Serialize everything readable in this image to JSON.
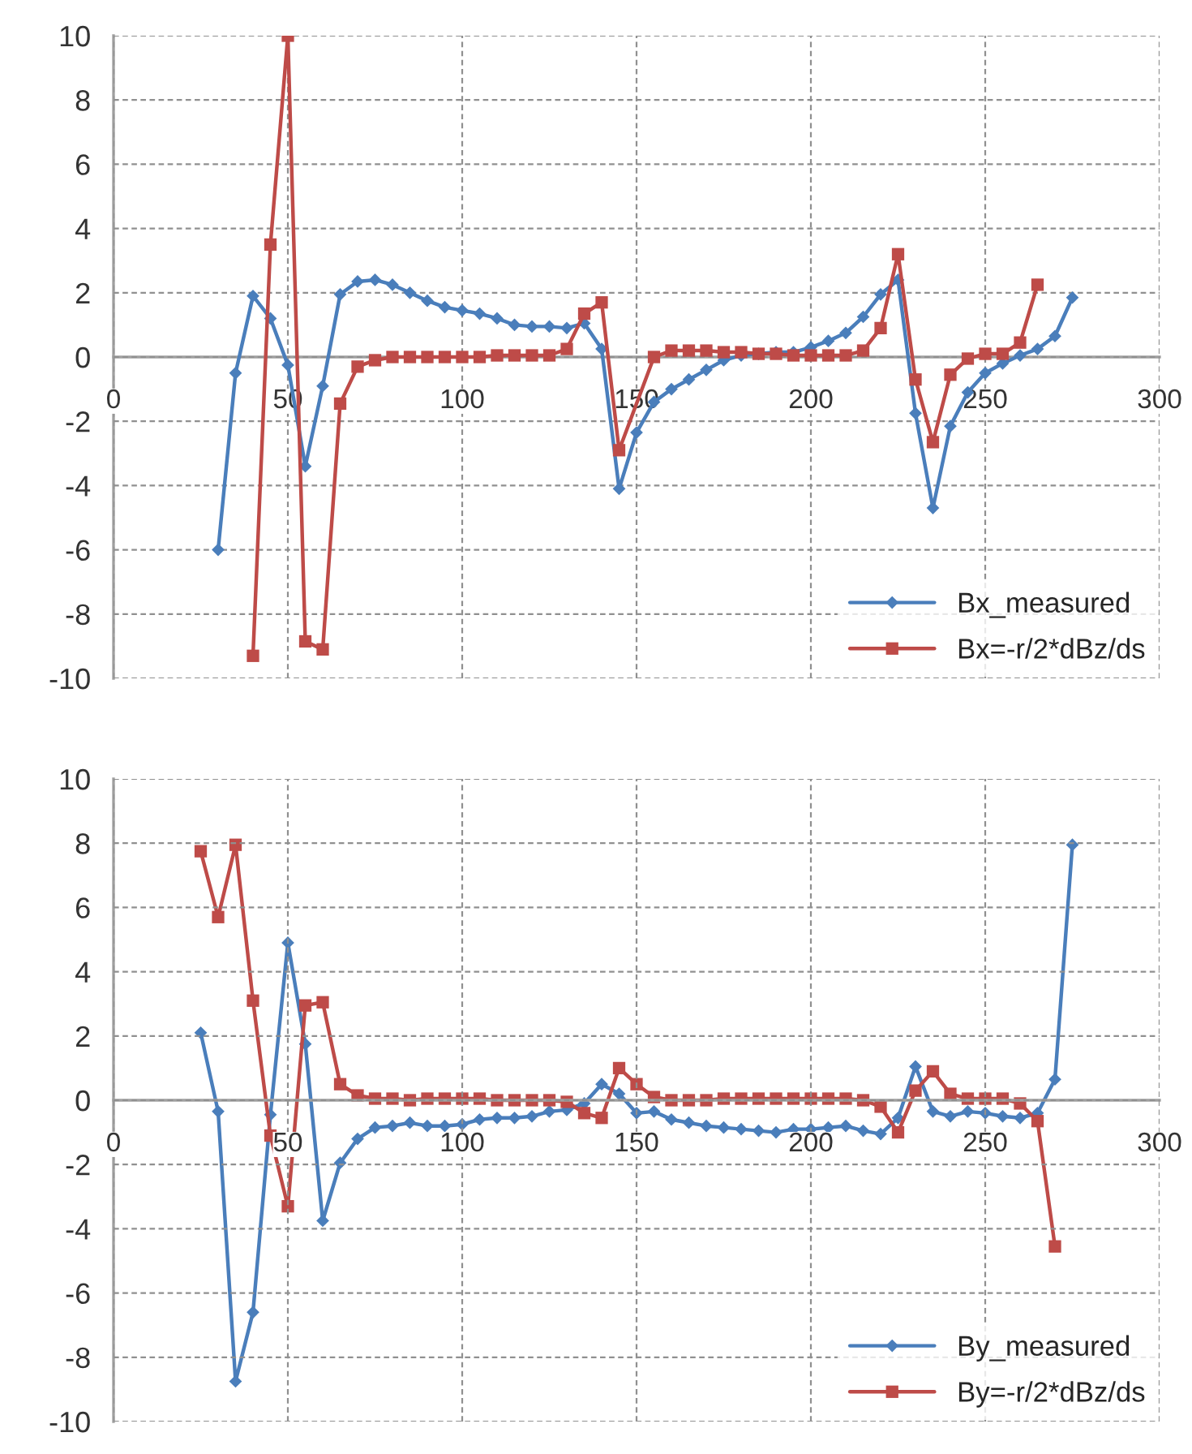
{
  "chart_data": [
    {
      "type": "line",
      "xlim": [
        0,
        300
      ],
      "xticks": [
        0,
        50,
        100,
        150,
        200,
        250,
        300
      ],
      "ylim": [
        -10,
        10
      ],
      "yticks": [
        -10,
        -8,
        -6,
        -4,
        -2,
        0,
        2,
        4,
        6,
        8,
        10
      ],
      "grid": true,
      "legend": "bottom right",
      "series": [
        {
          "name": "Bx_measured",
          "color": "#4a7ebb",
          "marker": "diamond",
          "x": [
            30,
            35,
            40,
            45,
            50,
            55,
            60,
            65,
            70,
            75,
            80,
            85,
            90,
            95,
            100,
            105,
            110,
            115,
            120,
            125,
            130,
            135,
            140,
            145,
            150,
            155,
            160,
            165,
            170,
            175,
            180,
            185,
            190,
            195,
            200,
            205,
            210,
            215,
            220,
            225,
            230,
            235,
            240,
            245,
            250,
            255,
            260,
            265,
            270,
            275
          ],
          "values": [
            -6,
            -0.5,
            1.9,
            1.2,
            -0.25,
            -3.4,
            -0.9,
            1.95,
            2.35,
            2.4,
            2.25,
            2.0,
            1.75,
            1.55,
            1.45,
            1.35,
            1.2,
            1.0,
            0.95,
            0.95,
            0.9,
            1.05,
            0.25,
            -4.1,
            -2.35,
            -1.4,
            -1.0,
            -0.7,
            -0.4,
            -0.1,
            0.05,
            0.1,
            0.15,
            0.15,
            0.3,
            0.5,
            0.75,
            1.25,
            1.95,
            2.4,
            -1.75,
            -4.7,
            -2.15,
            -1.1,
            -0.5,
            -0.2,
            0.05,
            0.25,
            0.65,
            1.85
          ]
        },
        {
          "name": "Bx=-r/2*dBz/ds",
          "color": "#be4b48",
          "marker": "square",
          "x": [
            40,
            45,
            50,
            55,
            60,
            65,
            70,
            75,
            80,
            85,
            90,
            95,
            100,
            105,
            110,
            115,
            120,
            125,
            130,
            135,
            140,
            145,
            155,
            160,
            165,
            170,
            175,
            180,
            185,
            190,
            195,
            200,
            205,
            210,
            215,
            220,
            225,
            230,
            235,
            240,
            245,
            250,
            255,
            260,
            265
          ],
          "values": [
            -9.3,
            3.5,
            10,
            -8.85,
            -9.1,
            -1.45,
            -0.3,
            -0.1,
            0,
            0,
            0,
            0,
            0,
            0,
            0.05,
            0.05,
            0.05,
            0.05,
            0.25,
            1.35,
            1.7,
            -2.9,
            0,
            0.2,
            0.2,
            0.2,
            0.15,
            0.15,
            0.1,
            0.1,
            0.05,
            0.05,
            0.05,
            0.05,
            0.2,
            0.9,
            3.2,
            -0.7,
            -2.65,
            -0.55,
            -0.05,
            0.1,
            0.1,
            0.45,
            2.25
          ]
        }
      ]
    },
    {
      "type": "line",
      "xlim": [
        0,
        300
      ],
      "xticks": [
        0,
        50,
        100,
        150,
        200,
        250,
        300
      ],
      "ylim": [
        -10,
        10
      ],
      "yticks": [
        -10,
        -8,
        -6,
        -4,
        -2,
        0,
        2,
        4,
        6,
        8,
        10
      ],
      "grid": true,
      "legend": "bottom right",
      "series": [
        {
          "name": "By_measured",
          "color": "#4a7ebb",
          "marker": "diamond",
          "x": [
            25,
            30,
            35,
            40,
            45,
            50,
            55,
            60,
            65,
            70,
            75,
            80,
            85,
            90,
            95,
            100,
            105,
            110,
            115,
            120,
            125,
            130,
            135,
            140,
            145,
            150,
            155,
            160,
            165,
            170,
            175,
            180,
            185,
            190,
            195,
            200,
            205,
            210,
            215,
            220,
            225,
            230,
            235,
            240,
            245,
            250,
            255,
            260,
            265,
            270,
            275
          ],
          "values": [
            2.1,
            -0.35,
            -8.75,
            -6.6,
            -0.45,
            4.9,
            1.75,
            -3.75,
            -1.95,
            -1.2,
            -0.85,
            -0.8,
            -0.7,
            -0.8,
            -0.8,
            -0.75,
            -0.6,
            -0.55,
            -0.55,
            -0.5,
            -0.35,
            -0.3,
            -0.1,
            0.5,
            0.2,
            -0.4,
            -0.35,
            -0.6,
            -0.7,
            -0.8,
            -0.85,
            -0.9,
            -0.95,
            -1.0,
            -0.9,
            -0.9,
            -0.85,
            -0.8,
            -0.95,
            -1.05,
            -0.55,
            1.05,
            -0.35,
            -0.5,
            -0.35,
            -0.4,
            -0.5,
            -0.55,
            -0.4,
            0.65,
            7.95
          ]
        },
        {
          "name": "By=-r/2*dBz/ds",
          "color": "#be4b48",
          "marker": "square",
          "x": [
            25,
            30,
            35,
            40,
            45,
            50,
            55,
            60,
            65,
            70,
            75,
            80,
            85,
            90,
            95,
            100,
            105,
            110,
            115,
            120,
            125,
            130,
            135,
            140,
            145,
            150,
            155,
            160,
            165,
            170,
            175,
            180,
            185,
            190,
            195,
            200,
            205,
            210,
            215,
            220,
            225,
            230,
            235,
            240,
            245,
            250,
            255,
            260,
            265,
            270
          ],
          "values": [
            7.75,
            5.7,
            7.95,
            3.1,
            -1.1,
            -3.3,
            2.95,
            3.05,
            0.5,
            0.15,
            0.05,
            0.05,
            0,
            0.05,
            0.05,
            0.05,
            0.05,
            0,
            0,
            0,
            0,
            -0.05,
            -0.4,
            -0.55,
            1.0,
            0.5,
            0.1,
            0,
            0,
            0,
            0.05,
            0.05,
            0.05,
            0.05,
            0.05,
            0.05,
            0.05,
            0.05,
            0,
            -0.2,
            -1.0,
            0.3,
            0.9,
            0.2,
            0.05,
            0.05,
            0.05,
            -0.1,
            -0.65,
            -4.55
          ]
        }
      ]
    }
  ]
}
